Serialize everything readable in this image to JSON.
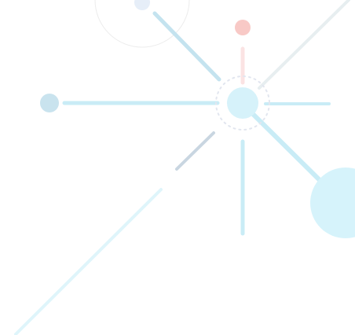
{
  "diagram": {
    "colors": {
      "hub": "#d6f2fa",
      "ray": "#c9ecf6",
      "ray_blue": "#c4e3ef",
      "ray_gray": "#c9d6e1",
      "ray_light": "#dff5fb",
      "ray_faint": "#e7eef0",
      "ray_pink": "#fbe3e3",
      "dot_pink": "#f8c9c6",
      "dot_blue": "#c9e3ee",
      "dot_pale": "#e6eef8",
      "big_circle": "#d6f3fb",
      "ring_gray": "#ececec",
      "dotted_ring": "#e2e6ef"
    }
  }
}
